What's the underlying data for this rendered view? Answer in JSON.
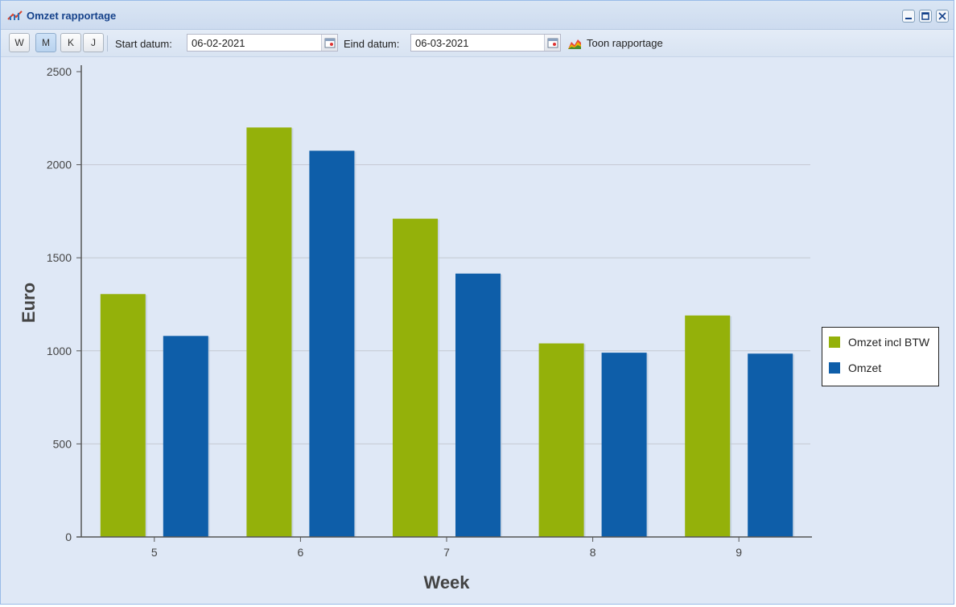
{
  "window": {
    "title": "Omzet rapportage"
  },
  "toolbar": {
    "period_buttons": [
      {
        "label": "W",
        "active": false
      },
      {
        "label": "M",
        "active": true
      },
      {
        "label": "K",
        "active": false
      },
      {
        "label": "J",
        "active": false
      }
    ],
    "start_label": "Start datum:",
    "start_value": "06-02-2021",
    "end_label": "Eind datum:",
    "end_value": "06-03-2021",
    "show_label": "Toon rapportage"
  },
  "colors": {
    "series_incl": "#94b10a",
    "series_omzet": "#0e5ea9",
    "background": "#dfe8f6"
  },
  "chart_data": {
    "type": "bar",
    "categories": [
      "5",
      "6",
      "7",
      "8",
      "9"
    ],
    "series": [
      {
        "name": "Omzet incl BTW",
        "values": [
          1305,
          2200,
          1710,
          1040,
          1190
        ]
      },
      {
        "name": "Omzet",
        "values": [
          1080,
          2075,
          1415,
          990,
          985
        ]
      }
    ],
    "xlabel": "Week",
    "ylabel": "Euro",
    "ylim": [
      0,
      2500
    ],
    "yticks": [
      "0",
      "500",
      "1000",
      "1500",
      "2000",
      "2500"
    ],
    "grid": true,
    "legend_position": "right"
  }
}
